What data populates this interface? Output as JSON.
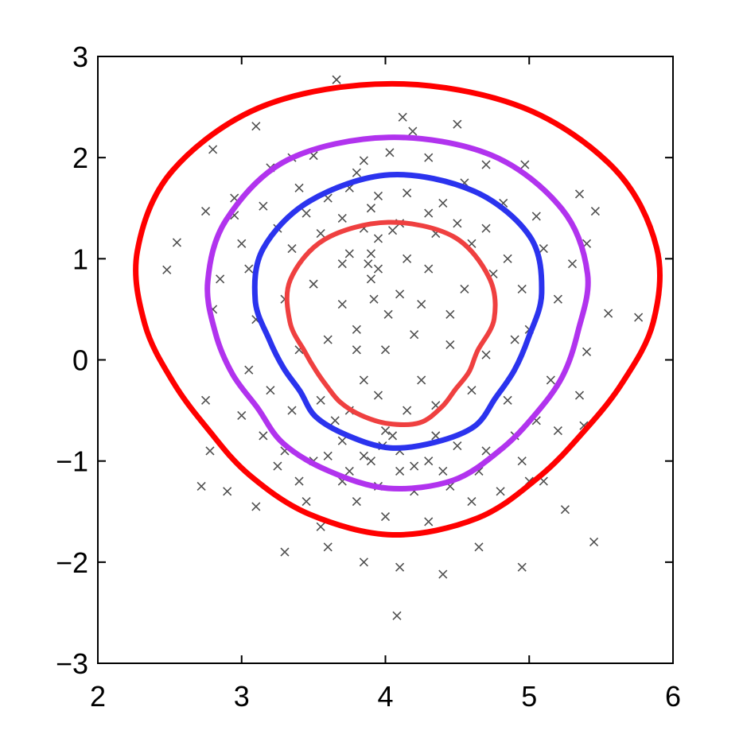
{
  "chart_data": {
    "type": "scatter",
    "title": "",
    "xlabel": "",
    "ylabel": "",
    "xlim": [
      2,
      6
    ],
    "ylim": [
      -3,
      3
    ],
    "grid": false,
    "x_ticks": [
      2,
      3,
      4,
      5,
      6
    ],
    "y_ticks": [
      3,
      2,
      1,
      0,
      -1,
      -2,
      -3
    ],
    "x_tick_labels": [
      "2",
      "3",
      "4",
      "5",
      "6"
    ],
    "y_tick_labels": [
      "3",
      "2",
      "1",
      "0",
      "−1",
      "−2",
      "−3"
    ],
    "marker": "x",
    "marker_color": "#505050",
    "points": [
      [
        3.66,
        2.77
      ],
      [
        4.5,
        2.33
      ],
      [
        4.12,
        2.4
      ],
      [
        4.19,
        2.26
      ],
      [
        3.1,
        2.31
      ],
      [
        2.8,
        2.08
      ],
      [
        3.35,
        2.0
      ],
      [
        3.5,
        2.02
      ],
      [
        3.85,
        1.97
      ],
      [
        4.03,
        2.05
      ],
      [
        4.3,
        2.0
      ],
      [
        4.7,
        1.93
      ],
      [
        4.97,
        1.93
      ],
      [
        5.35,
        1.64
      ],
      [
        2.55,
        1.16
      ],
      [
        2.48,
        0.89
      ],
      [
        2.75,
        1.47
      ],
      [
        2.95,
        1.43
      ],
      [
        3.15,
        1.52
      ],
      [
        3.4,
        1.7
      ],
      [
        3.6,
        1.6
      ],
      [
        3.75,
        1.7
      ],
      [
        3.95,
        1.62
      ],
      [
        4.15,
        1.65
      ],
      [
        4.4,
        1.55
      ],
      [
        4.55,
        1.75
      ],
      [
        4.82,
        1.55
      ],
      [
        5.05,
        1.42
      ],
      [
        5.1,
        1.1
      ],
      [
        5.4,
        1.15
      ],
      [
        5.46,
        1.47
      ],
      [
        5.55,
        0.46
      ],
      [
        5.76,
        0.42
      ],
      [
        5.4,
        0.08
      ],
      [
        5.35,
        -0.35
      ],
      [
        5.38,
        -0.65
      ],
      [
        5.2,
        -0.7
      ],
      [
        5.1,
        -1.2
      ],
      [
        5.0,
        -1.2
      ],
      [
        5.25,
        -1.48
      ],
      [
        5.45,
        -1.8
      ],
      [
        4.95,
        -2.05
      ],
      [
        4.65,
        -1.85
      ],
      [
        4.4,
        -2.12
      ],
      [
        4.1,
        -2.05
      ],
      [
        3.85,
        -2.0
      ],
      [
        3.6,
        -1.85
      ],
      [
        3.3,
        -1.9
      ],
      [
        3.1,
        -1.45
      ],
      [
        2.9,
        -1.3
      ],
      [
        2.78,
        -0.9
      ],
      [
        2.72,
        -1.25
      ],
      [
        2.75,
        -0.4
      ],
      [
        2.8,
        0.5
      ],
      [
        2.85,
        0.8
      ],
      [
        3.0,
        -0.55
      ],
      [
        3.55,
        -1.65
      ],
      [
        4.08,
        -2.53
      ],
      [
        4.0,
        -1.55
      ],
      [
        4.3,
        -1.6
      ],
      [
        3.8,
        -1.4
      ],
      [
        4.6,
        -1.4
      ],
      [
        3.4,
        -1.2
      ],
      [
        3.3,
        -0.9
      ],
      [
        3.5,
        -1.0
      ],
      [
        3.7,
        -0.8
      ],
      [
        3.9,
        -1.0
      ],
      [
        4.1,
        -0.9
      ],
      [
        4.3,
        -1.0
      ],
      [
        4.5,
        -0.85
      ],
      [
        4.7,
        -0.9
      ],
      [
        4.9,
        -0.75
      ],
      [
        3.35,
        -0.5
      ],
      [
        3.55,
        -0.4
      ],
      [
        3.75,
        -0.5
      ],
      [
        3.95,
        -0.35
      ],
      [
        4.15,
        -0.5
      ],
      [
        4.35,
        -0.45
      ],
      [
        4.6,
        -0.3
      ],
      [
        4.85,
        -0.4
      ],
      [
        3.4,
        0.1
      ],
      [
        3.6,
        0.2
      ],
      [
        3.8,
        0.3
      ],
      [
        4.0,
        0.1
      ],
      [
        4.2,
        0.25
      ],
      [
        4.45,
        0.15
      ],
      [
        4.7,
        0.05
      ],
      [
        4.9,
        0.2
      ],
      [
        3.3,
        0.6
      ],
      [
        3.5,
        0.75
      ],
      [
        3.7,
        0.55
      ],
      [
        3.9,
        0.8
      ],
      [
        4.1,
        0.65
      ],
      [
        4.3,
        0.9
      ],
      [
        4.55,
        0.7
      ],
      [
        4.75,
        0.85
      ],
      [
        3.35,
        1.1
      ],
      [
        3.55,
        1.25
      ],
      [
        3.75,
        1.05
      ],
      [
        3.95,
        1.2
      ],
      [
        4.15,
        1.0
      ],
      [
        4.35,
        1.25
      ],
      [
        4.6,
        1.15
      ],
      [
        4.85,
        1.0
      ],
      [
        3.45,
        1.45
      ],
      [
        3.7,
        1.4
      ],
      [
        3.9,
        1.5
      ],
      [
        4.1,
        1.35
      ],
      [
        4.3,
        1.45
      ],
      [
        4.5,
        1.35
      ],
      [
        4.7,
        1.3
      ],
      [
        3.25,
        1.3
      ],
      [
        3.05,
        0.9
      ],
      [
        3.1,
        0.4
      ],
      [
        3.05,
        -0.1
      ],
      [
        3.2,
        -0.3
      ],
      [
        3.15,
        -0.75
      ],
      [
        3.25,
        -1.05
      ],
      [
        3.45,
        -1.4
      ],
      [
        3.7,
        -1.2
      ],
      [
        3.95,
        -1.25
      ],
      [
        4.2,
        -1.3
      ],
      [
        4.45,
        -1.25
      ],
      [
        4.65,
        -1.1
      ],
      [
        4.8,
        -1.3
      ],
      [
        4.95,
        -1.0
      ],
      [
        5.05,
        -0.6
      ],
      [
        5.15,
        -0.2
      ],
      [
        5.0,
        0.3
      ],
      [
        5.2,
        0.6
      ],
      [
        4.95,
        0.7
      ],
      [
        5.3,
        0.95
      ],
      [
        3.0,
        1.15
      ],
      [
        2.95,
        1.6
      ],
      [
        3.2,
        1.9
      ],
      [
        3.8,
        1.85
      ],
      [
        3.9,
        1.05
      ],
      [
        3.88,
        0.95
      ],
      [
        3.95,
        0.9
      ],
      [
        3.85,
        1.3
      ],
      [
        4.05,
        1.28
      ],
      [
        3.92,
        0.6
      ],
      [
        4.02,
        0.45
      ],
      [
        3.8,
        0.1
      ],
      [
        4.0,
        -0.7
      ],
      [
        4.05,
        -0.75
      ],
      [
        3.98,
        -0.85
      ],
      [
        4.1,
        -1.1
      ],
      [
        4.2,
        -1.05
      ],
      [
        3.85,
        -0.95
      ],
      [
        3.75,
        -1.1
      ],
      [
        4.35,
        -0.75
      ],
      [
        4.4,
        -1.1
      ],
      [
        3.65,
        -0.6
      ],
      [
        3.6,
        -0.95
      ],
      [
        4.25,
        -0.2
      ],
      [
        3.85,
        -0.2
      ],
      [
        4.25,
        0.55
      ],
      [
        3.7,
        0.95
      ],
      [
        4.45,
        0.45
      ]
    ],
    "contours": [
      {
        "color": "#ff0000",
        "polar": {
          "cx": 4.05,
          "cy": 0.05,
          "r": [
            2.68,
            2.61,
            2.4,
            2.12,
            1.84,
            1.62,
            1.53,
            1.58,
            1.72,
            1.78,
            1.68,
            1.55,
            1.48,
            1.55,
            1.75,
            2.05,
            2.38,
            2.62,
            2.68
          ]
        }
      },
      {
        "color": "#b133ee",
        "polar": {
          "cx": 4.02,
          "cy": 0.05,
          "r": [
            2.15,
            2.1,
            1.88,
            1.6,
            1.34,
            1.23,
            1.18,
            1.22,
            1.32,
            1.32,
            1.22,
            1.14,
            1.05,
            1.1,
            1.22,
            1.45,
            1.75,
            2.05,
            2.15
          ]
        }
      },
      {
        "color": "#2b33ee",
        "polar": {
          "cx": 4.03,
          "cy": 0.05,
          "r": [
            1.78,
            1.72,
            1.52,
            1.22,
            0.98,
            0.88,
            0.85,
            0.92,
            0.92,
            0.92,
            0.85,
            0.8,
            0.72,
            0.75,
            0.85,
            1.08,
            1.37,
            1.62,
            1.78
          ]
        }
      },
      {
        "color": "#ef4040",
        "polar": {
          "cx": 4.02,
          "cy": -0.02,
          "r": [
            1.38,
            1.32,
            1.09,
            0.85,
            0.63,
            0.57,
            0.54,
            0.58,
            0.64,
            0.61,
            0.56,
            0.52,
            0.49,
            0.51,
            0.59,
            0.79,
            1.06,
            1.29,
            1.38
          ]
        }
      }
    ]
  }
}
